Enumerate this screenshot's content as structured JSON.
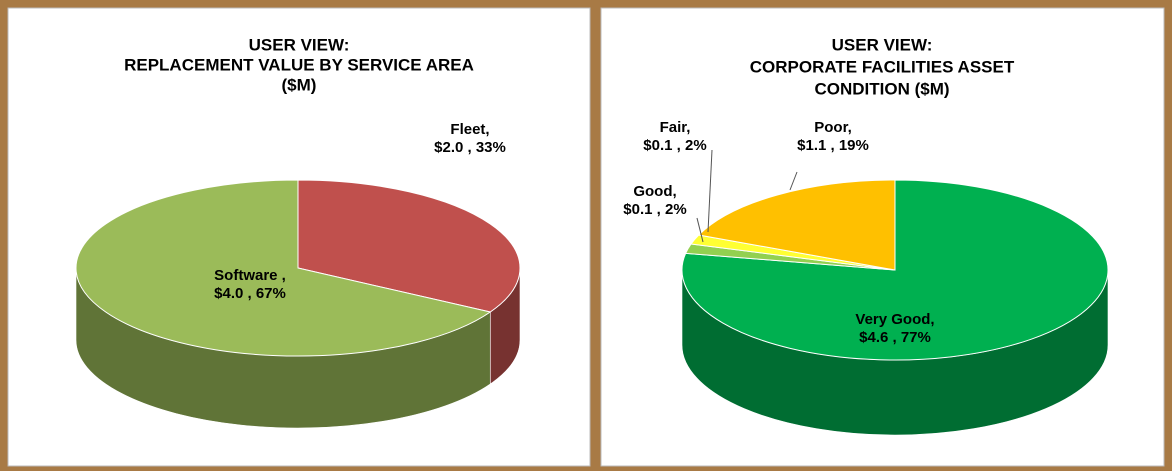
{
  "chart_data": [
    {
      "type": "pie",
      "title": [
        "USER VIEW:",
        "REPLACEMENT VALUE BY SERVICE AREA",
        "($M)"
      ],
      "categories": [
        "Fleet,",
        "Software ,"
      ],
      "values": [
        2.0,
        4.0
      ],
      "value_labels": [
        "$2.0 , 33%",
        "$4.0 , 67%"
      ],
      "colors": [
        "#c0504d",
        "#9bbb59"
      ]
    },
    {
      "type": "pie",
      "title": [
        "USER VIEW:",
        "CORPORATE FACILITIES ASSET",
        "CONDITION ($M)"
      ],
      "categories": [
        "Very Good,",
        "Good,",
        "Fair,",
        "Poor,"
      ],
      "values": [
        4.6,
        0.1,
        0.1,
        1.1
      ],
      "value_labels": [
        "$4.6 , 77%",
        "$0.1 , 2%",
        "$0.1 , 2%",
        "$1.1 , 19%"
      ],
      "colors": [
        "#00b050",
        "#92d050",
        "#ffff33",
        "#ffc000"
      ]
    }
  ]
}
